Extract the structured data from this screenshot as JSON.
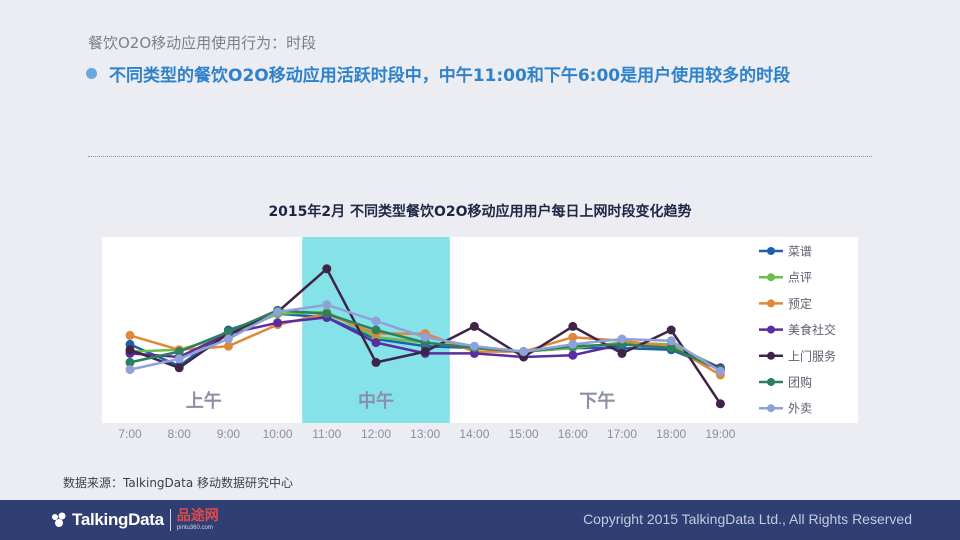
{
  "header": {
    "subtitle": "餐饮O2O移动应用使用行为：时段",
    "headline": "不同类型的餐饮O2O移动应用活跃时段中，中午11:00和下午6:00是用户使用较多的时段"
  },
  "source": "数据来源：TalkingData 移动数据研究中心",
  "footer": {
    "brand": "TalkingData",
    "partner": "品途网",
    "partner_url": "pintu360.com",
    "copyright": "Copyright 2015 TalkingData Ltd., All Rights Reserved"
  },
  "colors": {
    "plot_bg": "#ffffff",
    "highlight": "#84e2e8",
    "period_label": "#8a90a8"
  },
  "chart_data": {
    "type": "line",
    "title": "2015年2月 不同类型餐饮O2O移动应用用户每日上网时段变化趋势",
    "x": [
      "7:00",
      "8:00",
      "9:00",
      "10:00",
      "11:00",
      "12:00",
      "13:00",
      "14:00",
      "15:00",
      "16:00",
      "17:00",
      "18:00",
      "19:00"
    ],
    "y_range": [
      0,
      100
    ],
    "grid": false,
    "legend_position": "right",
    "highlight": {
      "from": "11:00",
      "to": "13:00"
    },
    "period_labels": [
      {
        "text": "上午",
        "at": "8:30"
      },
      {
        "text": "中午",
        "at": "12:00"
      },
      {
        "text": "下午",
        "at": "16:30"
      }
    ],
    "series": [
      {
        "name": "菜谱",
        "color": "#1f5fa8",
        "values": [
          42,
          30,
          50,
          59,
          57,
          45,
          41,
          40,
          38,
          40,
          40,
          39,
          28
        ]
      },
      {
        "name": "点评",
        "color": "#6abf4b",
        "values": [
          38,
          39,
          47,
          59,
          60,
          46,
          43,
          40,
          38,
          40,
          43,
          42,
          29
        ]
      },
      {
        "name": "预定",
        "color": "#e0883a",
        "values": [
          47,
          39,
          41,
          53,
          59,
          48,
          48,
          38,
          38,
          46,
          44,
          41,
          25
        ]
      },
      {
        "name": "美食社交",
        "color": "#5b2ca0",
        "values": [
          37,
          35,
          48,
          54,
          57,
          43,
          37,
          37,
          35,
          36,
          42,
          40,
          29
        ]
      },
      {
        "name": "上门服务",
        "color": "#3e2547",
        "values": [
          39,
          29,
          48,
          60,
          84,
          32,
          38,
          52,
          35,
          52,
          37,
          50,
          9
        ]
      },
      {
        "name": "团购",
        "color": "#2d7f5e",
        "values": [
          32,
          38,
          49,
          61,
          59,
          50,
          43,
          40,
          38,
          41,
          42,
          40,
          28
        ]
      },
      {
        "name": "外卖",
        "color": "#8fa0db",
        "values": [
          28,
          34,
          45,
          60,
          64,
          55,
          46,
          41,
          38,
          42,
          45,
          44,
          27
        ]
      }
    ]
  }
}
